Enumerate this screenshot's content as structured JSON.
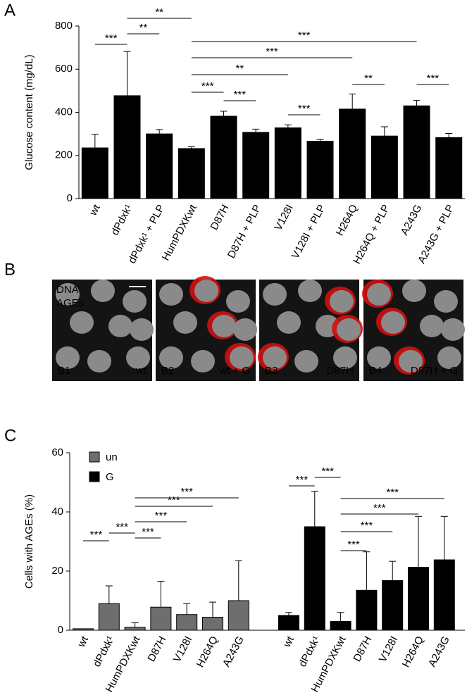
{
  "panel_labels": [
    "A",
    "B",
    "C"
  ],
  "chart_data": [
    {
      "type": "bar",
      "y_label": "Glucose content (mg/dL)",
      "categories": [
        "wt",
        "dPdxk¹",
        "dPdxk¹ + PLP",
        "HumPDXKwt",
        "D87H",
        "D87H + PLP",
        "V128I",
        "V128I + PLP",
        "H264Q",
        "H264Q + PLP",
        "A243G",
        "A243G + PLP"
      ],
      "series": [
        {
          "color": "#000000",
          "values": [
            235,
            477,
            300,
            232,
            382,
            307,
            328,
            266,
            415,
            290,
            430,
            283
          ],
          "errors": [
            63,
            205,
            20,
            8,
            23,
            15,
            14,
            8,
            70,
            43,
            25,
            19
          ],
          "annotations": [
            {
              "from": 0,
              "to": 1,
              "label": "***"
            },
            {
              "from": 1,
              "to": 2,
              "label": "**"
            },
            {
              "from": 1,
              "to": 3,
              "label": "**"
            },
            {
              "from": 3,
              "to": 10,
              "label": "***"
            },
            {
              "from": 3,
              "to": 8,
              "label": "***"
            },
            {
              "from": 3,
              "to": 6,
              "label": "**"
            },
            {
              "from": 3,
              "to": 4,
              "label": "***"
            },
            {
              "from": 4,
              "to": 5,
              "label": "***"
            },
            {
              "from": 6,
              "to": 7,
              "label": "***"
            },
            {
              "from": 8,
              "to": 9,
              "label": "**"
            },
            {
              "from": 10,
              "to": 11,
              "label": "***"
            }
          ]
        }
      ],
      "ylim": [
        0,
        800
      ],
      "yticks": [
        0,
        200,
        400,
        600,
        800
      ]
    },
    {
      "type": "grouped-bar",
      "y_label": "Cells with AGEs (%)",
      "categories": [
        "wt",
        "dPdxk¹",
        "HumPDXKwt",
        "D87H",
        "V128I",
        "H264Q",
        "A243G"
      ],
      "series": [
        {
          "name": "un",
          "color": "#6e6e6e",
          "values": [
            0.5,
            9,
            1,
            7.8,
            5.3,
            4.4,
            10
          ],
          "errors": [
            0,
            6,
            1.5,
            8.7,
            3.7,
            5.1,
            13.5
          ],
          "annotations": [
            {
              "from": 0,
              "to": 1,
              "label": "***"
            },
            {
              "from": 1,
              "to": 2,
              "label": "***"
            },
            {
              "from": 2,
              "to": 3,
              "label": "***"
            },
            {
              "from": 2,
              "to": 4,
              "label": "***"
            },
            {
              "from": 2,
              "to": 5,
              "label": "***"
            },
            {
              "from": 2,
              "to": 6,
              "label": "***"
            }
          ]
        },
        {
          "name": "G",
          "color": "#000000",
          "values": [
            5,
            35,
            3,
            13.5,
            16.8,
            21.3,
            23.8
          ],
          "errors": [
            1,
            12,
            3,
            13,
            6.5,
            17.2,
            14.7
          ],
          "annotations": [
            {
              "from": 0,
              "to": 1,
              "label": "***"
            },
            {
              "from": 1,
              "to": 2,
              "label": "***"
            },
            {
              "from": 2,
              "to": 3,
              "label": "***"
            },
            {
              "from": 2,
              "to": 4,
              "label": "***"
            },
            {
              "from": 2,
              "to": 5,
              "label": "***"
            },
            {
              "from": 2,
              "to": 6,
              "label": "***"
            }
          ]
        }
      ],
      "ylim": [
        0,
        60
      ],
      "yticks": [
        0,
        20,
        40,
        60
      ]
    }
  ],
  "micrographs": {
    "channels": [
      "DNA",
      "AGEs"
    ],
    "images": [
      {
        "label": "B1",
        "caption": "wt"
      },
      {
        "label": "B2",
        "caption": "wt + G"
      },
      {
        "label": "B3",
        "caption": "D87H"
      },
      {
        "label": "B4",
        "caption": "D87H + G"
      }
    ]
  }
}
